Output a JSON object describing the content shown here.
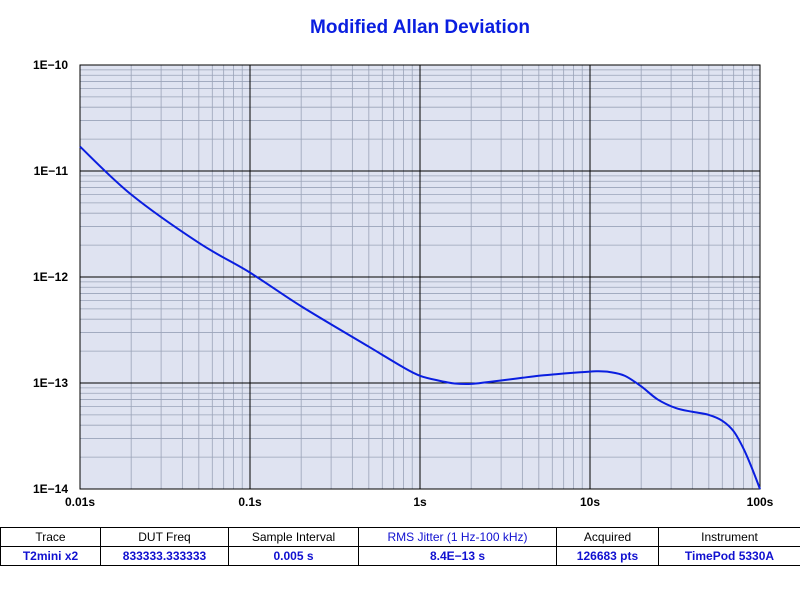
{
  "chart_data": {
    "type": "line",
    "title": "Modified Allan Deviation",
    "xlabel": "",
    "ylabel": "",
    "x_scale": "log",
    "y_scale": "log",
    "xlim": [
      0.01,
      100
    ],
    "ylim": [
      1e-14,
      1e-10
    ],
    "x_ticks": [
      "0.01s",
      "0.1s",
      "1s",
      "10s",
      "100s"
    ],
    "y_ticks": [
      "1E−10",
      "1E−11",
      "1E−12",
      "1E−13",
      "1E−14"
    ],
    "grid": true,
    "series": [
      {
        "color": "#0a1ee0",
        "x": [
          0.01,
          0.02,
          0.05,
          0.1,
          0.2,
          0.5,
          0.8,
          1,
          1.3,
          1.6,
          2,
          2.5,
          3.2,
          4,
          5,
          6.3,
          8,
          10,
          11,
          13,
          16,
          20,
          25,
          32,
          40,
          50,
          60,
          70,
          80,
          90,
          100
        ],
        "y": [
          1.7e-11,
          6e-12,
          2.1e-12,
          1.1e-12,
          5.3e-13,
          2.2e-13,
          1.4e-13,
          1.17e-13,
          1.05e-13,
          9.9e-14,
          9.8e-14,
          1.02e-13,
          1.07e-13,
          1.12e-13,
          1.17e-13,
          1.21e-13,
          1.25e-13,
          1.28e-13,
          1.29e-13,
          1.27e-13,
          1.17e-13,
          9.3e-14,
          7e-14,
          5.8e-14,
          5.35e-14,
          5e-14,
          4.4e-14,
          3.5e-14,
          2.4e-14,
          1.55e-14,
          1e-14
        ]
      }
    ]
  },
  "table": {
    "headers": [
      "Trace",
      "DUT Freq",
      "Sample Interval",
      "RMS Jitter (1 Hz-100 kHz)",
      "Acquired",
      "Instrument"
    ],
    "row": [
      "T2mini x2",
      "833333.333333",
      "0.005 s",
      "8.4E−13 s",
      "126683 pts",
      "TimePod 5330A"
    ]
  }
}
